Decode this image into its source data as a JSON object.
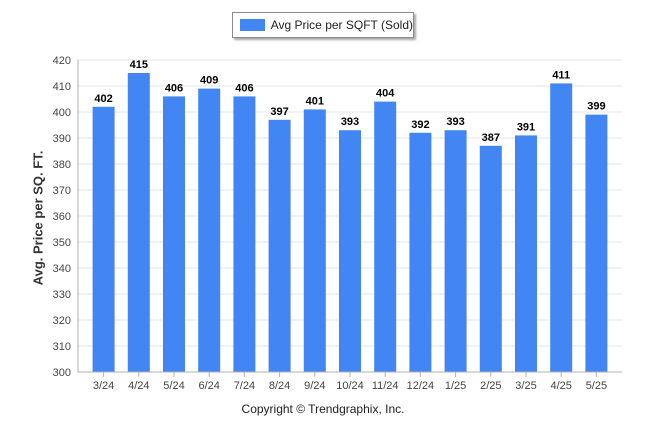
{
  "legend": {
    "label": "Avg Price per SQFT (Sold)"
  },
  "footer": {
    "copyright": "Copyright © Trendgraphix, Inc."
  },
  "colors": {
    "bar": "#4286f4",
    "grid": "#e6e6e6",
    "axis": "#b0b0b0",
    "tick_text": "#444444",
    "value_text": "#000000"
  },
  "chart_data": {
    "type": "bar",
    "title": "",
    "xlabel": "",
    "ylabel": "Avg. Price per SQ. FT.",
    "categories": [
      "3/24",
      "4/24",
      "5/24",
      "6/24",
      "7/24",
      "8/24",
      "9/24",
      "10/24",
      "11/24",
      "12/24",
      "1/25",
      "2/25",
      "3/25",
      "4/25",
      "5/25"
    ],
    "series": [
      {
        "name": "Avg Price per SQFT (Sold)",
        "values": [
          402,
          415,
          406,
          409,
          406,
          397,
          401,
          393,
          404,
          392,
          393,
          387,
          391,
          411,
          399
        ]
      }
    ],
    "ylim": [
      300,
      420
    ],
    "yticks": [
      300,
      310,
      320,
      330,
      340,
      350,
      360,
      370,
      380,
      390,
      400,
      410,
      420
    ],
    "grid": true,
    "legend_position": "top-center",
    "data_labels": true
  }
}
